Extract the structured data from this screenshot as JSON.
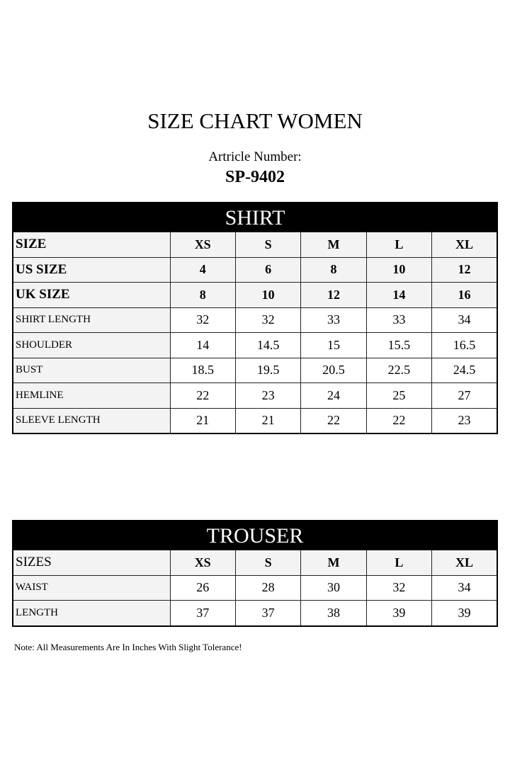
{
  "title": "SIZE CHART WOMEN",
  "article_label": "Artricle Number:",
  "article_number": "SP-9402",
  "shirt": {
    "heading": "SHIRT",
    "header_rows": [
      {
        "label": "SIZE",
        "values": [
          "XS",
          "S",
          "M",
          "L",
          "XL"
        ]
      },
      {
        "label": "US SIZE",
        "values": [
          "4",
          "6",
          "8",
          "10",
          "12"
        ]
      },
      {
        "label": "UK SIZE",
        "values": [
          "8",
          "10",
          "12",
          "14",
          "16"
        ]
      }
    ],
    "rows": [
      {
        "label": "SHIRT LENGTH",
        "values": [
          "32",
          "32",
          "33",
          "33",
          "34"
        ]
      },
      {
        "label": "SHOULDER",
        "values": [
          "14",
          "14.5",
          "15",
          "15.5",
          "16.5"
        ]
      },
      {
        "label": "BUST",
        "values": [
          "18.5",
          "19.5",
          "20.5",
          "22.5",
          "24.5"
        ]
      },
      {
        "label": "HEMLINE",
        "values": [
          "22",
          "23",
          "24",
          "25",
          "27"
        ]
      },
      {
        "label": "SLEEVE LENGTH",
        "values": [
          "21",
          "21",
          "22",
          "22",
          "23"
        ]
      }
    ]
  },
  "trouser": {
    "heading": "TROUSER",
    "header_row": {
      "label": "SIZES",
      "values": [
        "XS",
        "S",
        "M",
        "L",
        "XL"
      ]
    },
    "rows": [
      {
        "label": "WAIST",
        "values": [
          "26",
          "28",
          "30",
          "32",
          "34"
        ]
      },
      {
        "label": "LENGTH",
        "values": [
          "37",
          "37",
          "38",
          "39",
          "39"
        ]
      }
    ]
  },
  "note": "Note: All Measurements Are In Inches With Slight Tolerance!"
}
